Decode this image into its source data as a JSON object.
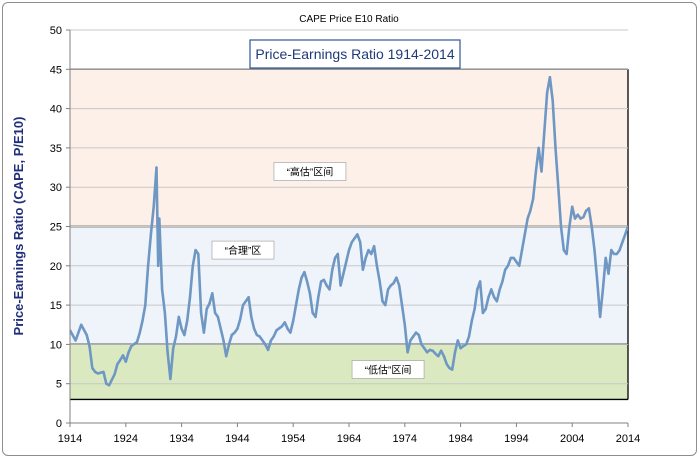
{
  "chart_data": {
    "type": "line",
    "title": "CAPE Price E10 Ratio",
    "inner_title": "Price-Earnings Ratio 1914-2014",
    "xlabel": "",
    "ylabel": "Price-Earnings Ratio (CAPE, P/E10)",
    "xlim": [
      1914,
      2014
    ],
    "ylim": [
      0,
      50
    ],
    "x_ticks": [
      "1914",
      "1924",
      "1934",
      "1944",
      "1954",
      "1964",
      "1974",
      "1984",
      "1994",
      "2004",
      "2014"
    ],
    "y_ticks": [
      "0",
      "5",
      "10",
      "15",
      "20",
      "25",
      "30",
      "35",
      "40",
      "45",
      "50"
    ],
    "bands": [
      {
        "label": "“高估”区间",
        "from": 25,
        "to": 45,
        "color": "#fdf0e8",
        "label_x": 1957,
        "label_y": 32
      },
      {
        "label": "“合理”区",
        "from": 10,
        "to": 25,
        "color": "#eef4fa",
        "label_x": 1945,
        "label_y": 22
      },
      {
        "label": "“低估”区间",
        "from": 3,
        "to": 10,
        "color": "#dbe9c0",
        "label_x": 1971,
        "label_y": 6.8
      }
    ],
    "line_color": "#6f97c4",
    "series": [
      {
        "name": "CAPE",
        "points": [
          [
            1914,
            11.8
          ],
          [
            1915,
            10.5
          ],
          [
            1916,
            12.5
          ],
          [
            1917,
            11.2
          ],
          [
            1917.5,
            9.8
          ],
          [
            1918,
            7
          ],
          [
            1918.5,
            6.5
          ],
          [
            1919,
            6.3
          ],
          [
            1920,
            6.5
          ],
          [
            1920.5,
            5
          ],
          [
            1921,
            4.8
          ],
          [
            1922,
            6.2
          ],
          [
            1922.5,
            7.5
          ],
          [
            1923,
            8
          ],
          [
            1923.5,
            8.6
          ],
          [
            1924,
            7.8
          ],
          [
            1924.5,
            9
          ],
          [
            1925,
            9.8
          ],
          [
            1926,
            10.3
          ],
          [
            1926.5,
            11.5
          ],
          [
            1927,
            13
          ],
          [
            1927.5,
            15
          ],
          [
            1928,
            20
          ],
          [
            1928.5,
            24
          ],
          [
            1929,
            27.5
          ],
          [
            1929.5,
            32.5
          ],
          [
            1929.8,
            20
          ],
          [
            1930,
            26
          ],
          [
            1930.5,
            17
          ],
          [
            1931,
            14
          ],
          [
            1931.5,
            9
          ],
          [
            1932,
            5.6
          ],
          [
            1932.5,
            9.5
          ],
          [
            1933,
            11
          ],
          [
            1933.5,
            13.5
          ],
          [
            1934,
            12
          ],
          [
            1934.5,
            11.2
          ],
          [
            1935,
            13
          ],
          [
            1935.5,
            16
          ],
          [
            1936,
            20
          ],
          [
            1936.5,
            22
          ],
          [
            1937,
            21.5
          ],
          [
            1937.5,
            14
          ],
          [
            1938,
            11.5
          ],
          [
            1938.5,
            14.5
          ],
          [
            1939,
            15.2
          ],
          [
            1939.5,
            16.5
          ],
          [
            1940,
            14
          ],
          [
            1940.5,
            13.5
          ],
          [
            1941,
            12
          ],
          [
            1941.5,
            10.5
          ],
          [
            1942,
            8.5
          ],
          [
            1942.5,
            10
          ],
          [
            1943,
            11.2
          ],
          [
            1943.5,
            11.5
          ],
          [
            1944,
            12
          ],
          [
            1944.5,
            13.2
          ],
          [
            1945,
            15
          ],
          [
            1945.5,
            15.5
          ],
          [
            1946,
            16
          ],
          [
            1946.5,
            13.5
          ],
          [
            1947,
            12
          ],
          [
            1947.5,
            11.2
          ],
          [
            1948,
            11
          ],
          [
            1948.5,
            10.5
          ],
          [
            1949,
            10
          ],
          [
            1949.5,
            9.3
          ],
          [
            1950,
            10.5
          ],
          [
            1950.5,
            11
          ],
          [
            1951,
            11.8
          ],
          [
            1952,
            12.3
          ],
          [
            1952.5,
            12.8
          ],
          [
            1953,
            12
          ],
          [
            1953.5,
            11.5
          ],
          [
            1954,
            13
          ],
          [
            1954.5,
            15
          ],
          [
            1955,
            17
          ],
          [
            1955.5,
            18.5
          ],
          [
            1956,
            19.2
          ],
          [
            1956.5,
            18
          ],
          [
            1957,
            16.5
          ],
          [
            1957.5,
            14
          ],
          [
            1958,
            13.5
          ],
          [
            1958.5,
            16
          ],
          [
            1959,
            18
          ],
          [
            1959.5,
            18.2
          ],
          [
            1960,
            17.5
          ],
          [
            1960.5,
            17
          ],
          [
            1961,
            19.5
          ],
          [
            1961.5,
            21
          ],
          [
            1962,
            21.5
          ],
          [
            1962.5,
            17.5
          ],
          [
            1963,
            19
          ],
          [
            1963.5,
            20.5
          ],
          [
            1964,
            22
          ],
          [
            1964.5,
            23
          ],
          [
            1965,
            23.5
          ],
          [
            1965.5,
            24
          ],
          [
            1966,
            23
          ],
          [
            1966.5,
            19.5
          ],
          [
            1967,
            21
          ],
          [
            1967.5,
            22
          ],
          [
            1968,
            21.5
          ],
          [
            1968.5,
            22.5
          ],
          [
            1969,
            20
          ],
          [
            1969.5,
            18
          ],
          [
            1970,
            15.5
          ],
          [
            1970.5,
            15
          ],
          [
            1971,
            17
          ],
          [
            1971.5,
            17.5
          ],
          [
            1972,
            17.8
          ],
          [
            1972.5,
            18.5
          ],
          [
            1973,
            17.5
          ],
          [
            1973.5,
            15
          ],
          [
            1974,
            12.5
          ],
          [
            1974.5,
            9
          ],
          [
            1975,
            10.5
          ],
          [
            1975.5,
            11
          ],
          [
            1976,
            11.5
          ],
          [
            1976.5,
            11.2
          ],
          [
            1977,
            10
          ],
          [
            1977.5,
            9.5
          ],
          [
            1978,
            9
          ],
          [
            1978.5,
            9.3
          ],
          [
            1979,
            9.2
          ],
          [
            1979.5,
            8.8
          ],
          [
            1980,
            8.5
          ],
          [
            1980.5,
            9.2
          ],
          [
            1981,
            8.5
          ],
          [
            1981.5,
            7.5
          ],
          [
            1982,
            7
          ],
          [
            1982.5,
            6.8
          ],
          [
            1983,
            9
          ],
          [
            1983.5,
            10.5
          ],
          [
            1984,
            9.5
          ],
          [
            1984.5,
            9.8
          ],
          [
            1985,
            10
          ],
          [
            1985.5,
            11
          ],
          [
            1986,
            13
          ],
          [
            1986.5,
            14.5
          ],
          [
            1987,
            17
          ],
          [
            1987.5,
            18
          ],
          [
            1988,
            14
          ],
          [
            1988.5,
            14.5
          ],
          [
            1989,
            16
          ],
          [
            1989.5,
            17
          ],
          [
            1990,
            16
          ],
          [
            1990.5,
            15.5
          ],
          [
            1991,
            17
          ],
          [
            1991.5,
            18
          ],
          [
            1992,
            19.5
          ],
          [
            1992.5,
            20
          ],
          [
            1993,
            21
          ],
          [
            1993.5,
            21
          ],
          [
            1994,
            20.5
          ],
          [
            1994.5,
            20
          ],
          [
            1995,
            22
          ],
          [
            1995.5,
            24
          ],
          [
            1996,
            26
          ],
          [
            1996.5,
            27
          ],
          [
            1997,
            28.5
          ],
          [
            1997.5,
            32
          ],
          [
            1998,
            35
          ],
          [
            1998.5,
            32
          ],
          [
            1999,
            37
          ],
          [
            1999.5,
            42
          ],
          [
            2000,
            44
          ],
          [
            2000.5,
            41
          ],
          [
            2001,
            35
          ],
          [
            2001.5,
            30
          ],
          [
            2002,
            25
          ],
          [
            2002.5,
            22
          ],
          [
            2003,
            21.5
          ],
          [
            2003.5,
            25
          ],
          [
            2004,
            27.5
          ],
          [
            2004.5,
            26
          ],
          [
            2005,
            26.5
          ],
          [
            2005.5,
            26
          ],
          [
            2006,
            26.2
          ],
          [
            2006.5,
            27
          ],
          [
            2007,
            27.3
          ],
          [
            2007.5,
            25
          ],
          [
            2008,
            22
          ],
          [
            2008.5,
            18
          ],
          [
            2009,
            13.5
          ],
          [
            2009.5,
            17
          ],
          [
            2010,
            21
          ],
          [
            2010.5,
            19
          ],
          [
            2011,
            22
          ],
          [
            2011.5,
            21.5
          ],
          [
            2012,
            21.5
          ],
          [
            2012.5,
            22
          ],
          [
            2013,
            23
          ],
          [
            2013.5,
            24
          ],
          [
            2014,
            25
          ]
        ]
      }
    ]
  }
}
